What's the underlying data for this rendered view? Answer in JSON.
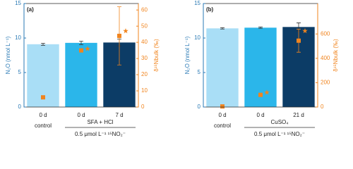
{
  "chart_data": [
    {
      "type": "bar",
      "panel_label": "(a)",
      "ylabel": "N₂O (nmol L⁻¹)",
      "y2label": "δ¹⁵Nbulk (‰)",
      "categories": [
        "0 d",
        "0 d",
        "7 d"
      ],
      "group_labels": [
        "control",
        "SFA + HCl"
      ],
      "condition": "0.5 μmol L⁻¹ ¹⁵NO₂⁻",
      "values": [
        9.1,
        9.3,
        9.35
      ],
      "errors": [
        0.15,
        0.25,
        0.5
      ],
      "colors": [
        "#a9def6",
        "#2bb6ea",
        "#0c3c66"
      ],
      "markers": {
        "values": [
          6,
          35,
          44
        ],
        "errors": [
          null,
          null,
          18
        ],
        "star_values": [
          null,
          36,
          47
        ],
        "color": "#f0841e",
        "axis": "y2"
      },
      "ylim": [
        0,
        15
      ],
      "yticks": [
        0,
        5,
        10,
        15
      ],
      "y2lim": [
        0,
        64
      ],
      "y2ticks": [
        0,
        10,
        20,
        30,
        40,
        50,
        60
      ]
    },
    {
      "type": "bar",
      "panel_label": "(b)",
      "ylabel": "N₂O (nmol L⁻¹)",
      "y2label": "δ¹⁵Nbulk (‰)",
      "categories": [
        "0 d",
        "0 d",
        "21 d"
      ],
      "group_labels": [
        "control",
        "CuSO₄"
      ],
      "condition": "0.5 μmol L⁻¹ ¹⁵NO₂⁻",
      "values": [
        11.4,
        11.5,
        11.6
      ],
      "errors": [
        0.1,
        0.1,
        0.6
      ],
      "colors": [
        "#a9def6",
        "#2bb6ea",
        "#0c3c66"
      ],
      "markers": {
        "values": [
          5,
          100,
          545
        ],
        "errors": [
          null,
          null,
          95
        ],
        "star_values": [
          null,
          120,
          625
        ],
        "color": "#f0841e",
        "axis": "y2"
      },
      "ylim": [
        0,
        15
      ],
      "yticks": [
        0,
        5,
        10,
        15
      ],
      "y2lim": [
        0,
        850
      ],
      "y2ticks": [
        0,
        200,
        400,
        600
      ]
    }
  ]
}
